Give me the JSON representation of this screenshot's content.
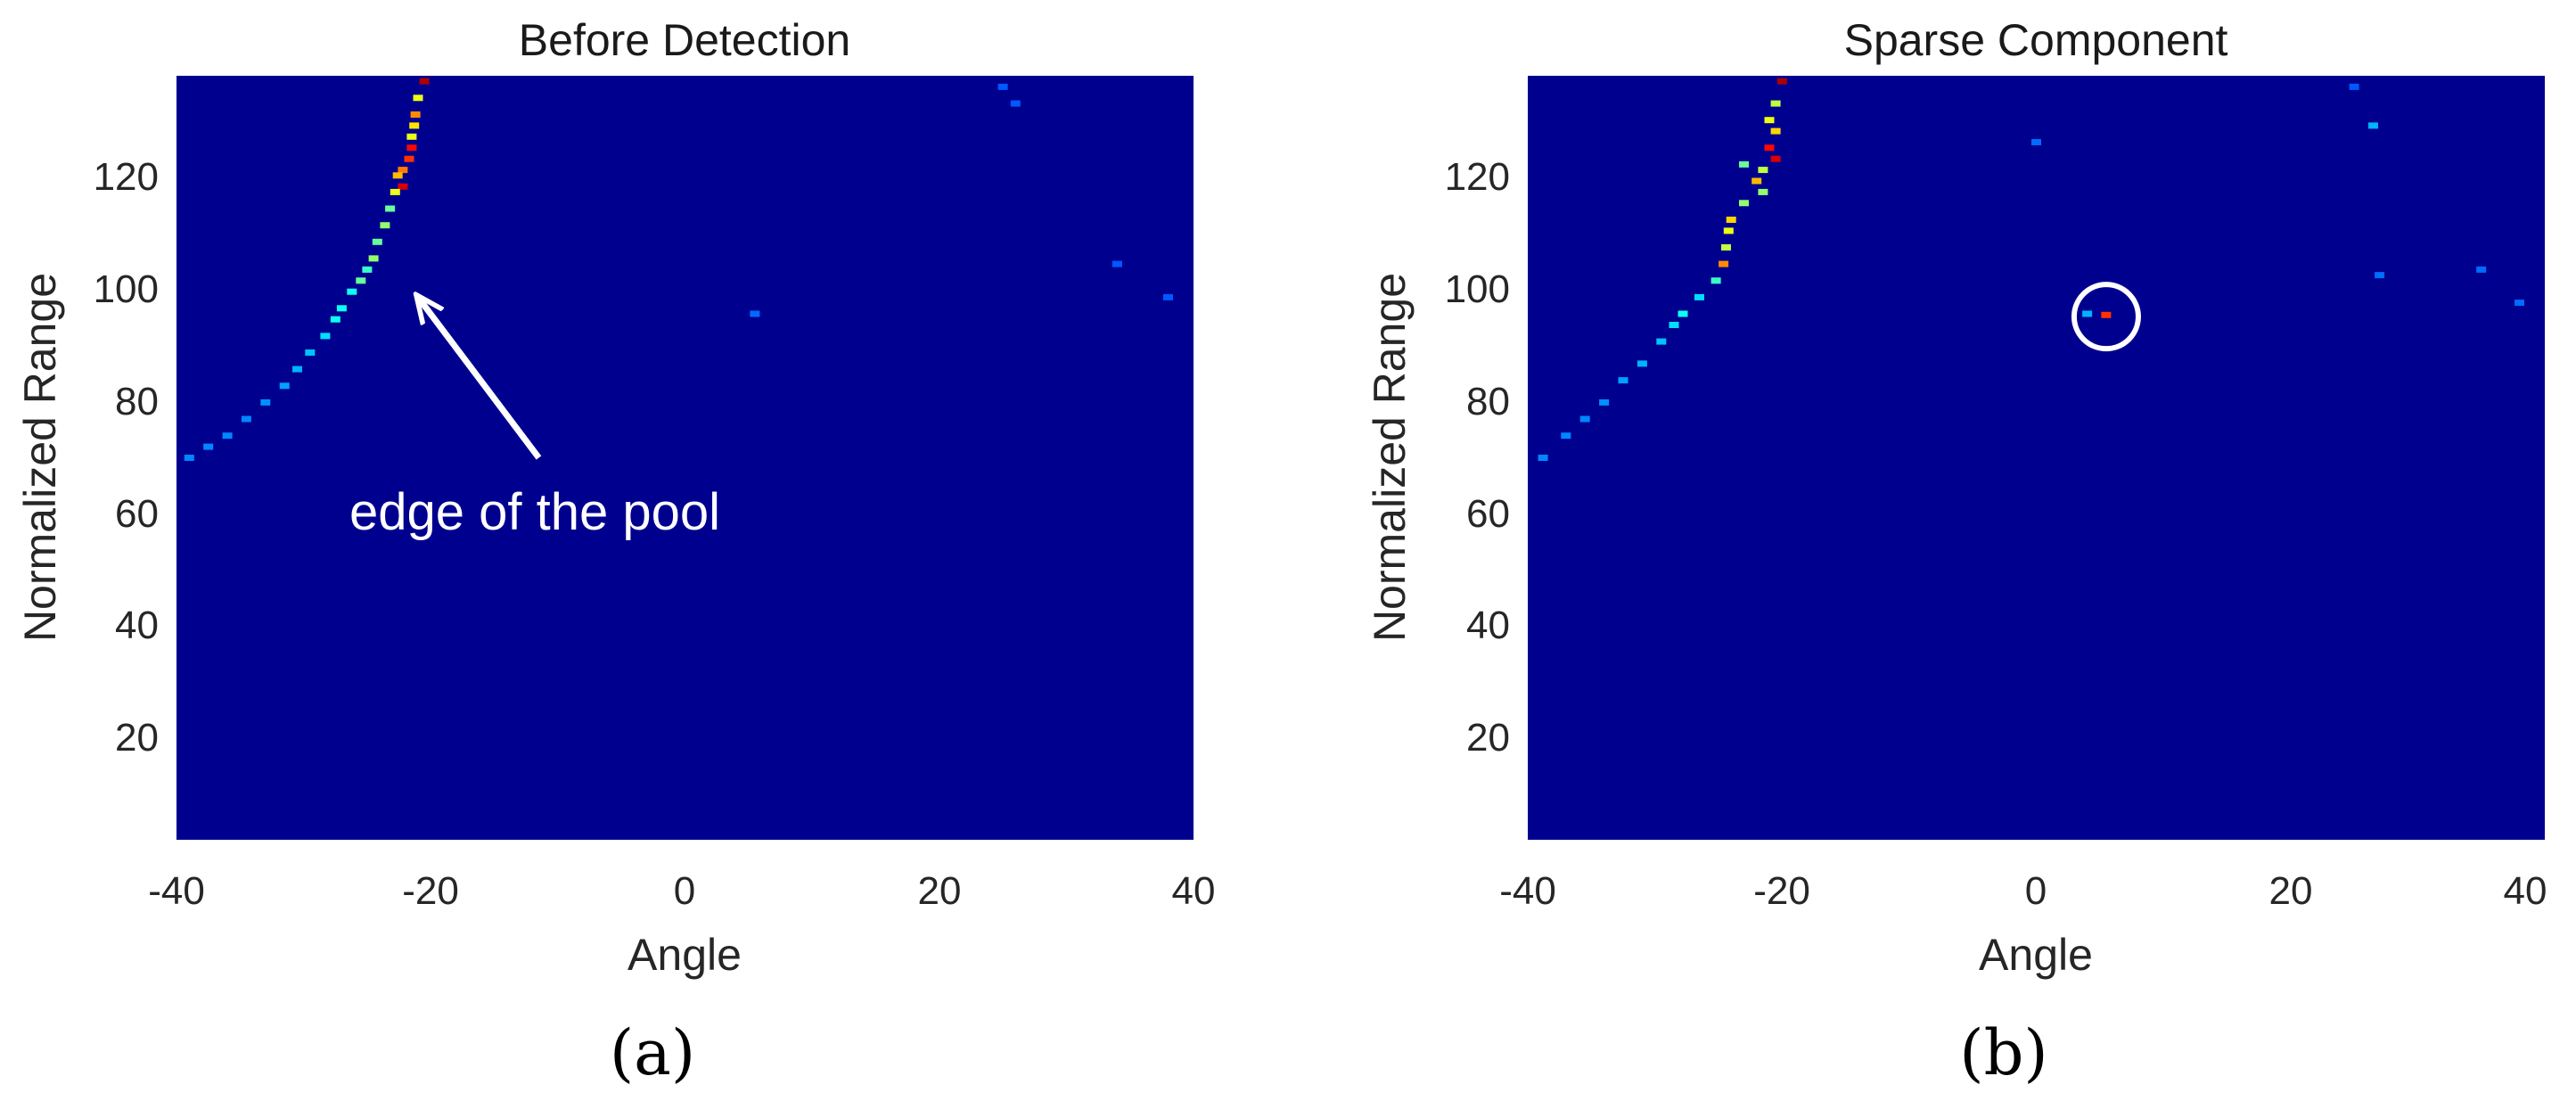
{
  "colors": {
    "background": "#00008f",
    "low": "#0000b8",
    "mid": "#1060ff",
    "high": "#40e0ff",
    "peak": "#e00000",
    "annotation": "#ffffff"
  },
  "chart_data": [
    {
      "type": "heatmap",
      "colormap": "jet",
      "title": "Before Detection",
      "xlabel": "Angle",
      "ylabel": "Normalized Range",
      "xlim": [
        -40,
        40
      ],
      "ylim": [
        0,
        138
      ],
      "xticks": [
        "-40",
        "-20",
        "0",
        "20",
        "40"
      ],
      "yticks": [
        "20",
        "40",
        "60",
        "80",
        "100",
        "120"
      ],
      "caption": "(a)",
      "annotation": {
        "text": "edge of the pool",
        "arrow_from": [
          -11.5,
          69
        ],
        "arrow_to": [
          -21,
          98
        ]
      },
      "cells": [
        {
          "x": -20.5,
          "y": 137,
          "v": 0.95
        },
        {
          "x": -21,
          "y": 134,
          "v": 0.55
        },
        {
          "x": -21.2,
          "y": 131,
          "v": 0.7
        },
        {
          "x": -21.3,
          "y": 129,
          "v": 0.6
        },
        {
          "x": -21.5,
          "y": 127,
          "v": 0.55
        },
        {
          "x": -21.5,
          "y": 125,
          "v": 0.85
        },
        {
          "x": -21.7,
          "y": 123,
          "v": 0.8
        },
        {
          "x": -22.2,
          "y": 121,
          "v": 0.72
        },
        {
          "x": -22.6,
          "y": 120,
          "v": 0.65
        },
        {
          "x": -22.2,
          "y": 118,
          "v": 0.9
        },
        {
          "x": -22.8,
          "y": 117,
          "v": 0.55
        },
        {
          "x": -23.2,
          "y": 114,
          "v": 0.4
        },
        {
          "x": -23.6,
          "y": 111,
          "v": 0.45
        },
        {
          "x": -24.2,
          "y": 108,
          "v": 0.4
        },
        {
          "x": -24.5,
          "y": 105,
          "v": 0.45
        },
        {
          "x": -25,
          "y": 103,
          "v": 0.35
        },
        {
          "x": -25.5,
          "y": 101,
          "v": 0.4
        },
        {
          "x": -26.2,
          "y": 99,
          "v": 0.3
        },
        {
          "x": -27,
          "y": 96,
          "v": 0.3
        },
        {
          "x": -27.5,
          "y": 94,
          "v": 0.3
        },
        {
          "x": -28.3,
          "y": 91,
          "v": 0.25
        },
        {
          "x": -29.5,
          "y": 88,
          "v": 0.22
        },
        {
          "x": -30.5,
          "y": 85,
          "v": 0.2
        },
        {
          "x": -31.5,
          "y": 82,
          "v": 0.18
        },
        {
          "x": -33,
          "y": 79,
          "v": 0.16
        },
        {
          "x": -34.5,
          "y": 76,
          "v": 0.15
        },
        {
          "x": -36,
          "y": 73,
          "v": 0.15
        },
        {
          "x": -37.5,
          "y": 71,
          "v": 0.15
        },
        {
          "x": -39,
          "y": 69,
          "v": 0.15
        },
        {
          "x": 5.5,
          "y": 95,
          "v": 0.12
        },
        {
          "x": 25,
          "y": 136,
          "v": 0.1
        },
        {
          "x": 26,
          "y": 133,
          "v": 0.1
        },
        {
          "x": 34,
          "y": 104,
          "v": 0.1
        },
        {
          "x": 38,
          "y": 98,
          "v": 0.1
        }
      ]
    },
    {
      "type": "heatmap",
      "colormap": "jet",
      "title": "Sparse Component",
      "xlabel": "Angle",
      "ylabel": "Normalized Range",
      "xlim": [
        -40,
        40
      ],
      "ylim": [
        0,
        138
      ],
      "xticks": [
        "-40",
        "-20",
        "0",
        "20",
        "40"
      ],
      "yticks": [
        "20",
        "40",
        "60",
        "80",
        "100",
        "120"
      ],
      "caption": "(b)",
      "highlight_circle": {
        "x": 5.5,
        "y": 94.5
      },
      "cells": [
        {
          "x": -20,
          "y": 137,
          "v": 0.95
        },
        {
          "x": -20.5,
          "y": 133,
          "v": 0.5
        },
        {
          "x": -21,
          "y": 130,
          "v": 0.55
        },
        {
          "x": -20.5,
          "y": 128,
          "v": 0.62
        },
        {
          "x": -21,
          "y": 125,
          "v": 0.85
        },
        {
          "x": -20.5,
          "y": 123,
          "v": 0.9
        },
        {
          "x": -21.5,
          "y": 121,
          "v": 0.5
        },
        {
          "x": -22,
          "y": 119,
          "v": 0.65
        },
        {
          "x": -21.5,
          "y": 117,
          "v": 0.45
        },
        {
          "x": -23,
          "y": 122,
          "v": 0.4
        },
        {
          "x": -23,
          "y": 115,
          "v": 0.45
        },
        {
          "x": -24,
          "y": 112,
          "v": 0.62
        },
        {
          "x": -24.2,
          "y": 110,
          "v": 0.55
        },
        {
          "x": -24.4,
          "y": 107,
          "v": 0.5
        },
        {
          "x": -24.6,
          "y": 104,
          "v": 0.7
        },
        {
          "x": -25.2,
          "y": 101,
          "v": 0.35
        },
        {
          "x": -26.5,
          "y": 98,
          "v": 0.25
        },
        {
          "x": -27.8,
          "y": 95,
          "v": 0.3
        },
        {
          "x": -28.5,
          "y": 93,
          "v": 0.25
        },
        {
          "x": -29.5,
          "y": 90,
          "v": 0.22
        },
        {
          "x": -31,
          "y": 86,
          "v": 0.2
        },
        {
          "x": -32.5,
          "y": 83,
          "v": 0.18
        },
        {
          "x": -34,
          "y": 79,
          "v": 0.16
        },
        {
          "x": -35.5,
          "y": 76,
          "v": 0.15
        },
        {
          "x": -37,
          "y": 73,
          "v": 0.15
        },
        {
          "x": -38.8,
          "y": 69,
          "v": 0.15
        },
        {
          "x": 5.5,
          "y": 94.8,
          "v": 0.8
        },
        {
          "x": 4,
          "y": 95,
          "v": 0.2
        },
        {
          "x": 0,
          "y": 126,
          "v": 0.12
        },
        {
          "x": 25,
          "y": 136,
          "v": 0.1
        },
        {
          "x": 26.5,
          "y": 129,
          "v": 0.2
        },
        {
          "x": 27,
          "y": 102,
          "v": 0.12
        },
        {
          "x": 35,
          "y": 103,
          "v": 0.12
        },
        {
          "x": 38,
          "y": 97,
          "v": 0.12
        }
      ]
    }
  ]
}
